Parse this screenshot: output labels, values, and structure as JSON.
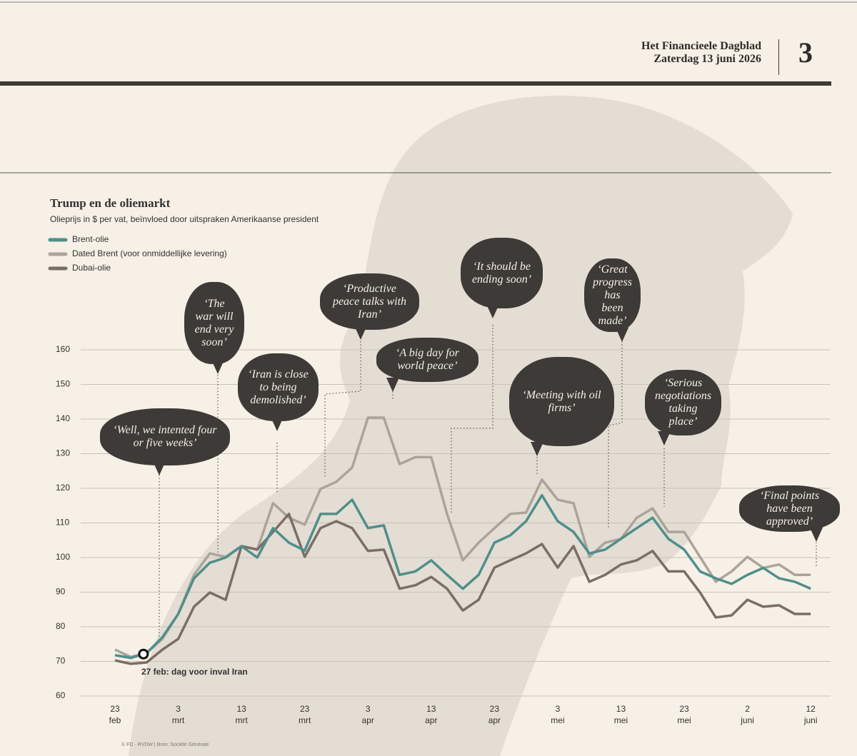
{
  "header": {
    "newspaper": "Het Financieele Dagblad",
    "date": "Zaterdag 13 juni 2026",
    "page": "3"
  },
  "chart_data": {
    "type": "line",
    "title": "Trump en de oliemarkt",
    "subtitle": "Olieprijs in $ per vat, beïnvloed door uitspraken Amerikaanse president",
    "categories": [
      "23 feb",
      null,
      null,
      null,
      "3 mrt",
      null,
      null,
      null,
      "13 mrt",
      null,
      null,
      null,
      "23 mrt",
      null,
      null,
      null,
      "3 apr",
      null,
      null,
      null,
      "13 apr",
      null,
      null,
      null,
      "23 apr",
      null,
      null,
      null,
      "3 mei",
      null,
      null,
      null,
      "13 mei",
      null,
      null,
      null,
      "23 mei",
      null,
      null,
      null,
      "2 juni",
      null,
      null,
      null,
      "12 juni"
    ],
    "series": [
      {
        "name": "Brent-olie",
        "color": "#4f8f8c",
        "values": [
          71.8,
          71,
          72.4,
          77,
          83.7,
          94,
          98.5,
          100,
          103.3,
          100,
          108.5,
          104.3,
          102,
          112.6,
          112.6,
          116.7,
          108.5,
          109.3,
          95,
          96,
          99.2,
          95,
          91,
          95,
          104.3,
          106.4,
          110.5,
          118,
          110.5,
          107.4,
          101.2,
          102.3,
          105.4,
          108.5,
          111.5,
          105.4,
          102.3,
          96,
          94,
          92.4,
          95,
          97,
          94,
          93,
          91
        ]
      },
      {
        "name": "Dated Brent (voor onmiddellijke levering)",
        "color": "#aaa49a",
        "values": [
          73.4,
          71.3,
          72.4,
          76.5,
          83.7,
          95,
          101.2,
          100.2,
          103.3,
          102.3,
          115.7,
          111.5,
          109.5,
          119.8,
          121.9,
          126,
          140.4,
          140.4,
          127,
          129,
          129,
          112.6,
          99.2,
          104.3,
          108.5,
          112.6,
          113,
          122.5,
          116.7,
          115.7,
          100.2,
          104.3,
          105.4,
          111.5,
          114.2,
          107.4,
          107.4,
          100.2,
          93,
          96,
          100.2,
          97,
          98,
          95,
          95
        ]
      },
      {
        "name": "Dubai-olie",
        "color": "#7a6e66",
        "values": [
          70.3,
          69.3,
          69.7,
          73.4,
          76.5,
          85.8,
          89.9,
          87.8,
          103.3,
          102.3,
          107.4,
          112.6,
          100.2,
          108.5,
          110.5,
          108.5,
          101.9,
          102.3,
          91,
          92,
          94.4,
          91,
          84.7,
          87.8,
          97.1,
          99.2,
          101.2,
          103.9,
          97.1,
          103.3,
          93,
          95,
          98,
          99.2,
          101.9,
          96,
          96,
          89.9,
          82.7,
          83.3,
          87.8,
          85.8,
          86.2,
          83.7,
          83.7
        ]
      }
    ],
    "ylim": [
      60,
      160
    ],
    "yticks": [
      60,
      70,
      80,
      90,
      100,
      110,
      120,
      130,
      140,
      150,
      160
    ],
    "grid": true,
    "event_label": "27 feb: dag voor inval Iran",
    "annotations": [
      "‘Well, we intented four or five weeks’",
      "‘The war will end very soon’",
      "‘Iran is close to being demolished’",
      "‘Productive peace talks with Iran’",
      "‘A big day for world peace’",
      "‘It should be ending soon’",
      "‘Meeting with oil firms’",
      "‘Great progress has been made’",
      "‘Serious negotiations taking place’",
      "‘Final points have been approved’"
    ],
    "source": "© FD · RVDW | Bron: Société Générale"
  }
}
